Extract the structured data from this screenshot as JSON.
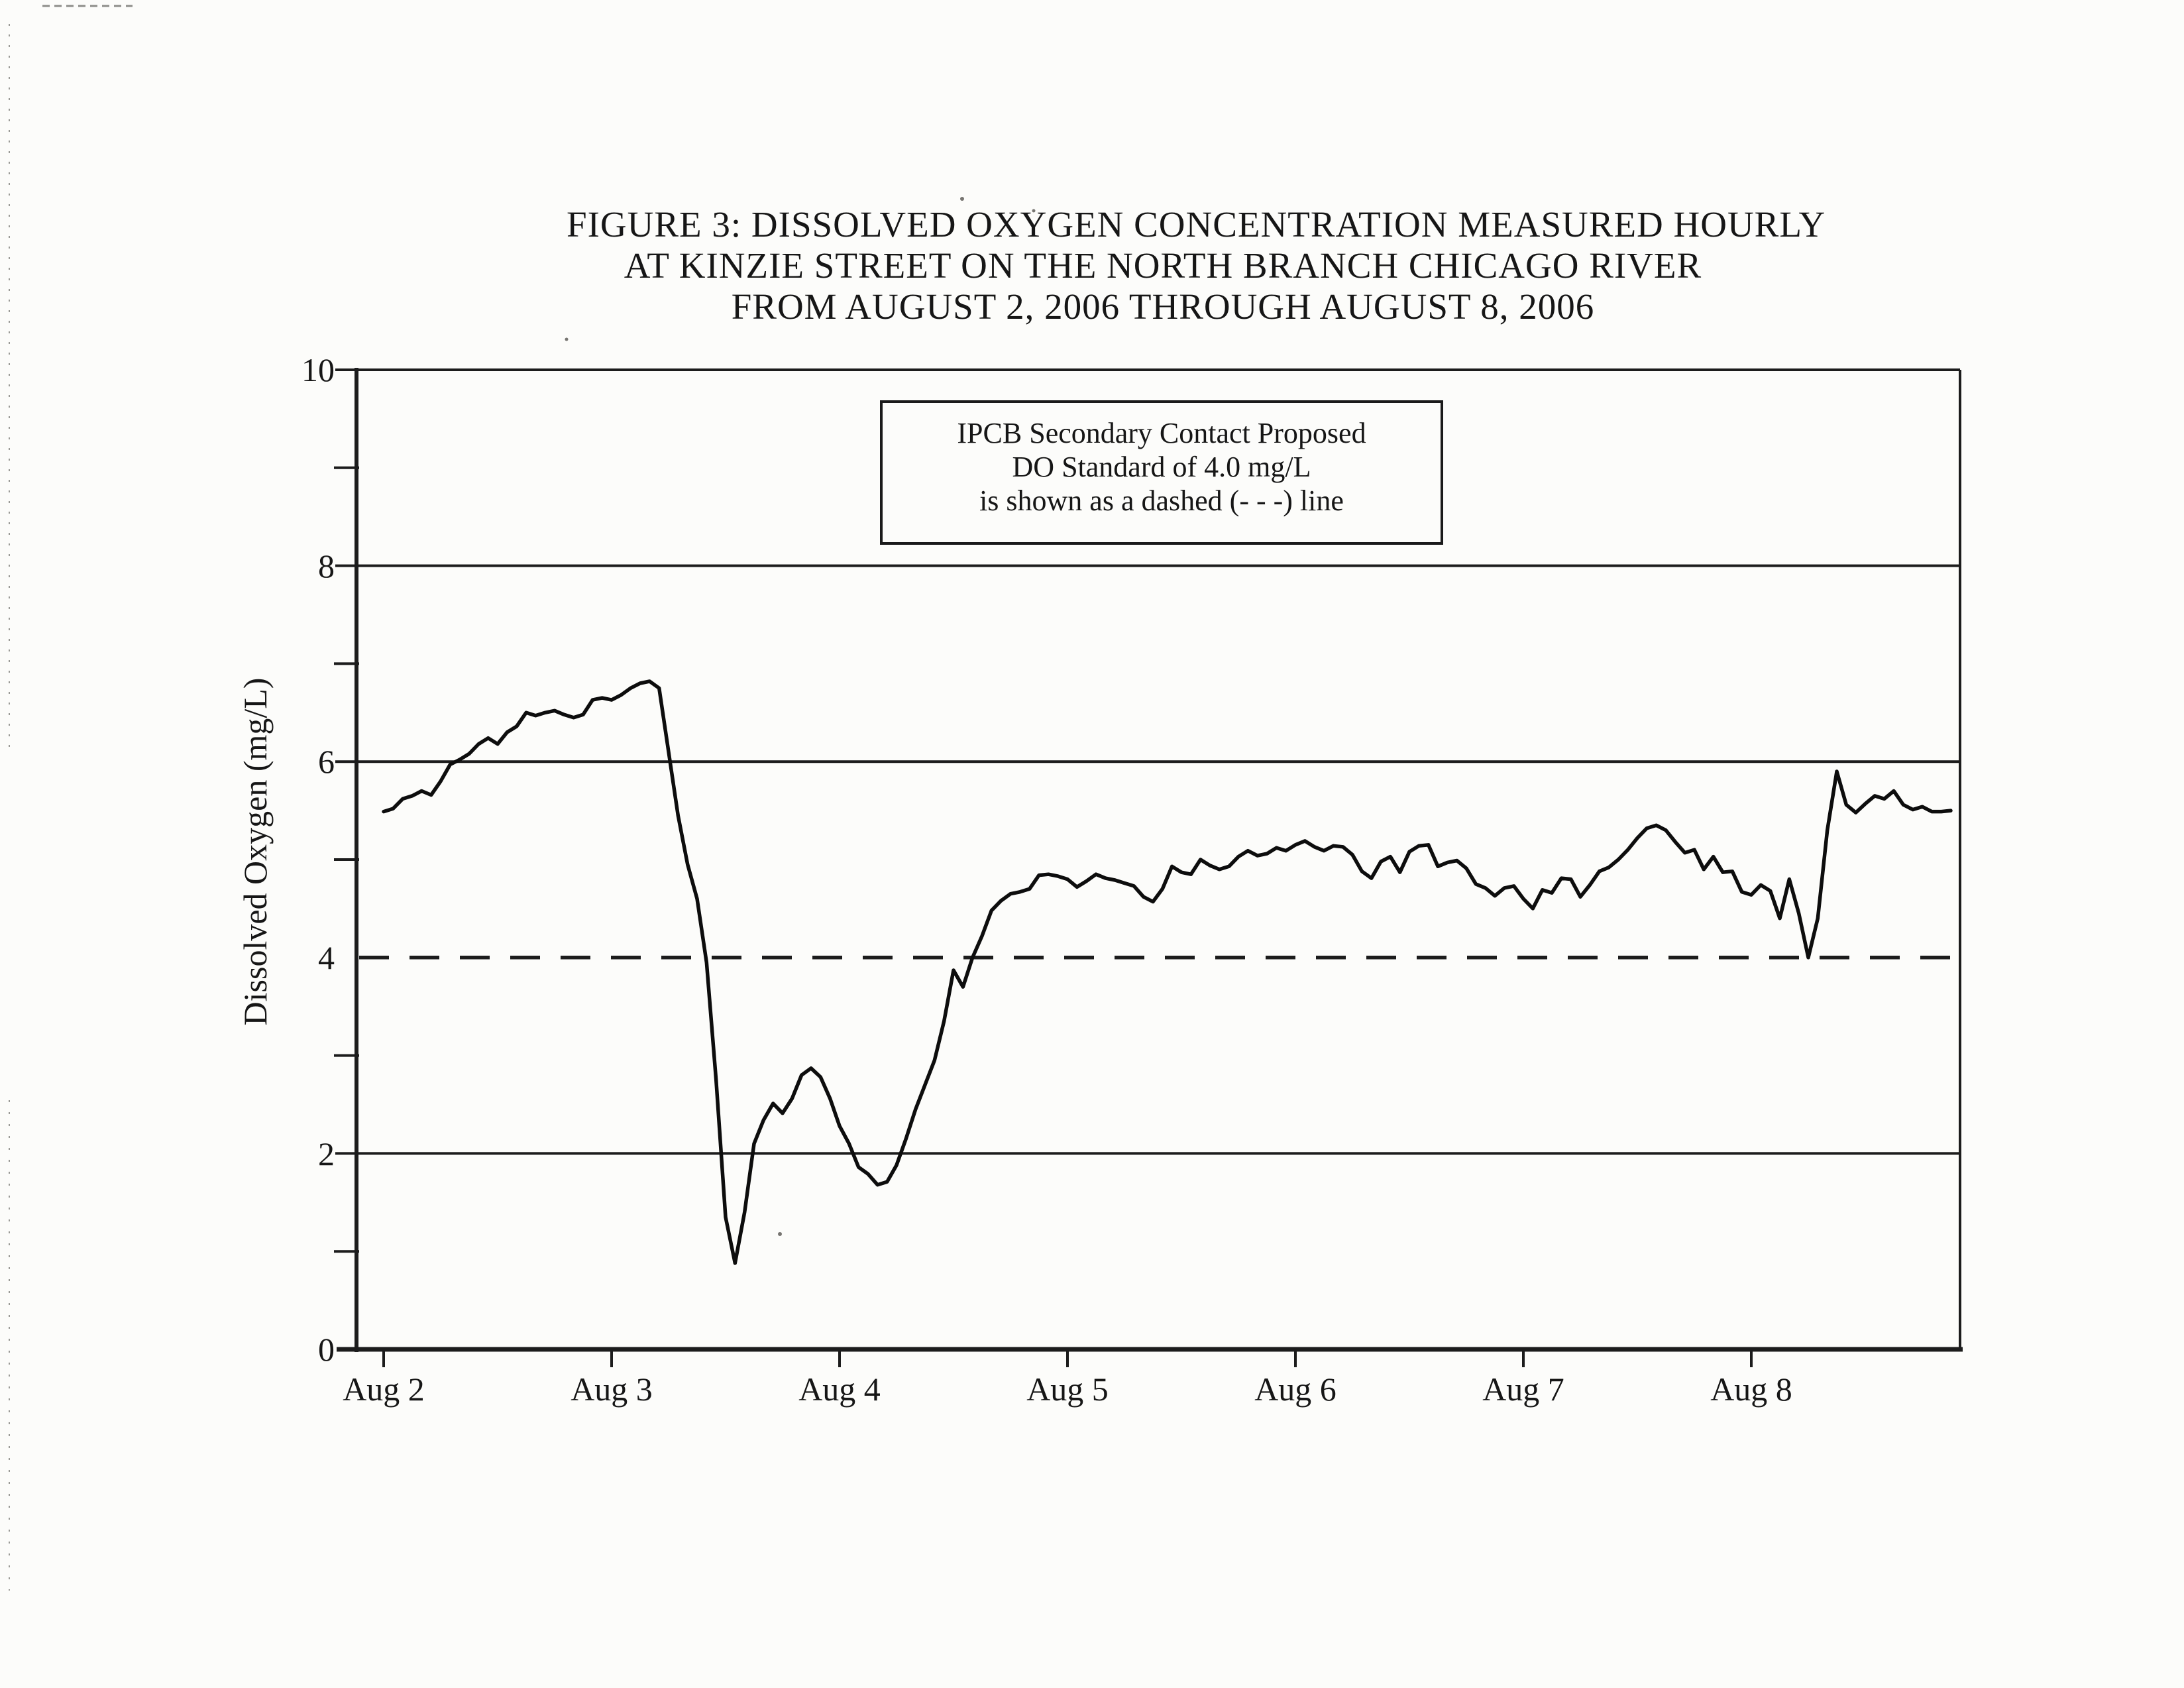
{
  "figure": {
    "title_lines": [
      "FIGURE 3: DISSOLVED OXYGEN CONCENTRATION MEASURED HOURLY",
      "AT KINZIE STREET ON THE NORTH BRANCH CHICAGO RIVER",
      "FROM AUGUST 2, 2006 THROUGH AUGUST 8, 2006"
    ],
    "legend_lines": [
      "IPCB Secondary Contact Proposed",
      "DO Standard of 4.0 mg/L",
      "is shown as a dashed (- - -) line"
    ]
  },
  "colors": {
    "ink": "#161616",
    "line": "#0d0d0d",
    "grid": "#1c1c1c",
    "paper": "#fcfcfa",
    "artifact": "#9a9a96"
  },
  "chart_data": {
    "type": "line",
    "title": "FIGURE 3: DISSOLVED OXYGEN CONCENTRATION MEASURED HOURLY AT KINZIE STREET ON THE NORTH BRANCH CHICAGO RIVER FROM AUGUST 2, 2006 THROUGH AUGUST 8, 2006",
    "xlabel": "",
    "ylabel": "Dissolved Oxygen (mg/L)",
    "ylim": [
      0,
      10
    ],
    "ytick_values": [
      10,
      8,
      6,
      4,
      2,
      0
    ],
    "ytick_labels": [
      "10",
      "8",
      "6",
      "4",
      "2",
      "0"
    ],
    "minor_ytick_values": [
      1,
      3,
      5,
      7,
      9
    ],
    "grid_values": [
      10,
      8,
      6,
      2
    ],
    "grid_on": true,
    "legend_position": "top-center-boxed",
    "xticks": [
      "Aug 2",
      "Aug 3",
      "Aug 4",
      "Aug 5",
      "Aug 6",
      "Aug 7",
      "Aug 8"
    ],
    "standard_line": {
      "value": 4.0,
      "style": "dashed",
      "label": "IPCB Secondary Contact Proposed DO Standard of 4.0 mg/L"
    },
    "x_unit": "hours since Aug 2, 2006 00:00 (one point per hour)",
    "series": [
      {
        "name": "Dissolved Oxygen (mg/L), hourly",
        "start": "Aug 2, 2006 00:00",
        "interval_hours": 1,
        "values": [
          5.49,
          5.52,
          5.62,
          5.65,
          5.7,
          5.66,
          5.8,
          5.97,
          6.02,
          6.08,
          6.18,
          6.24,
          6.18,
          6.3,
          6.36,
          6.5,
          6.47,
          6.5,
          6.52,
          6.48,
          6.45,
          6.48,
          6.63,
          6.65,
          6.63,
          6.68,
          6.75,
          6.8,
          6.82,
          6.75,
          6.1,
          5.45,
          4.95,
          4.6,
          3.95,
          2.75,
          1.35,
          0.88,
          1.4,
          2.1,
          2.34,
          2.51,
          2.41,
          2.56,
          2.8,
          2.87,
          2.78,
          2.56,
          2.28,
          2.1,
          1.86,
          1.79,
          1.68,
          1.71,
          1.88,
          2.15,
          2.45,
          2.7,
          2.95,
          3.35,
          3.87,
          3.7,
          4.0,
          4.22,
          4.48,
          4.58,
          4.65,
          4.67,
          4.7,
          4.84,
          4.85,
          4.83,
          4.8,
          4.72,
          4.78,
          4.85,
          4.81,
          4.79,
          4.76,
          4.73,
          4.62,
          4.57,
          4.7,
          4.93,
          4.87,
          4.85,
          5.0,
          4.94,
          4.9,
          4.93,
          5.03,
          5.09,
          5.04,
          5.06,
          5.12,
          5.09,
          5.15,
          5.19,
          5.13,
          5.09,
          5.14,
          5.13,
          5.05,
          4.88,
          4.81,
          4.98,
          5.03,
          4.87,
          5.08,
          5.14,
          5.15,
          4.93,
          4.97,
          4.99,
          4.91,
          4.75,
          4.71,
          4.63,
          4.71,
          4.73,
          4.6,
          4.5,
          4.69,
          4.66,
          4.81,
          4.8,
          4.62,
          4.74,
          4.88,
          4.92,
          5.0,
          5.1,
          5.22,
          5.32,
          5.35,
          5.3,
          5.18,
          5.07,
          5.1,
          4.9,
          5.03,
          4.87,
          4.88,
          4.67,
          4.64,
          4.74,
          4.68,
          4.4,
          4.8,
          4.45,
          4.0,
          4.4,
          5.3,
          5.9,
          5.56,
          5.48,
          5.57,
          5.65,
          5.62,
          5.7,
          5.56,
          5.51,
          5.54,
          5.49,
          5.49,
          5.5
        ]
      }
    ]
  }
}
